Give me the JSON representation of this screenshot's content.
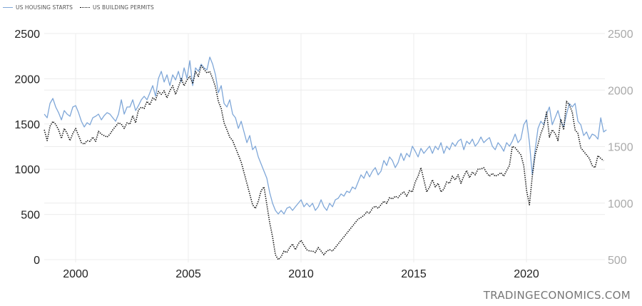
{
  "legend": {
    "items": [
      {
        "label": "US HOUSING STARTS",
        "style": "solid",
        "color": "#7fa7d8"
      },
      {
        "label": "US BUILDING PERMITS",
        "style": "dotted",
        "color": "#111111"
      }
    ]
  },
  "source": {
    "label": "TRADINGECONOMICS.COM"
  },
  "chart_data": {
    "type": "line",
    "title": "",
    "xlabel": "",
    "ylabel": "",
    "x_ticks": [
      2000,
      2005,
      2010,
      2015,
      2020
    ],
    "xlim": [
      1998.6,
      2023.5
    ],
    "left_axis": {
      "ticks": [
        0,
        500,
        1000,
        1500,
        2000,
        2500
      ],
      "ylim": [
        0,
        2500
      ],
      "series": "US HOUSING STARTS"
    },
    "right_axis": {
      "ticks": [
        500,
        1000,
        1500,
        2000,
        2500
      ],
      "ylim": [
        500,
        2500
      ],
      "series": "US BUILDING PERMITS"
    },
    "grid": true,
    "legend_position": "top-left",
    "x_start": 1998.61,
    "x_step": 0.1266,
    "series": [
      {
        "name": "US HOUSING STARTS",
        "axis": "left",
        "color": "#7fa7d8",
        "style": "solid",
        "values": [
          1609,
          1569,
          1727,
          1782,
          1688,
          1625,
          1546,
          1648,
          1609,
          1585,
          1688,
          1703,
          1625,
          1530,
          1467,
          1514,
          1491,
          1569,
          1585,
          1609,
          1546,
          1593,
          1625,
          1609,
          1569,
          1530,
          1609,
          1767,
          1609,
          1688,
          1688,
          1767,
          1648,
          1703,
          1767,
          1806,
          1767,
          1845,
          1924,
          1806,
          2003,
          2082,
          1964,
          2043,
          1924,
          2043,
          1987,
          2082,
          1964,
          2121,
          2003,
          2200,
          1924,
          2121,
          2082,
          2161,
          2121,
          2098,
          2240,
          2161,
          2043,
          1845,
          1924,
          1727,
          1688,
          1767,
          1609,
          1569,
          1451,
          1530,
          1412,
          1293,
          1372,
          1215,
          1254,
          1136,
          1057,
          978,
          899,
          741,
          623,
          544,
          505,
          544,
          505,
          568,
          584,
          544,
          584,
          623,
          662,
          584,
          623,
          584,
          623,
          544,
          584,
          662,
          584,
          544,
          623,
          584,
          662,
          678,
          726,
          702,
          757,
          741,
          804,
          781,
          860,
          938,
          899,
          978,
          915,
          978,
          1017,
          938,
          978,
          1096,
          1041,
          1136,
          1096,
          1017,
          1073,
          1175,
          1096,
          1175,
          1136,
          1254,
          1199,
          1136,
          1230,
          1175,
          1215,
          1254,
          1175,
          1254,
          1215,
          1293,
          1175,
          1254,
          1215,
          1293,
          1254,
          1309,
          1333,
          1215,
          1309,
          1278,
          1333,
          1254,
          1293,
          1356,
          1293,
          1325,
          1349,
          1254,
          1215,
          1293,
          1254,
          1199,
          1293,
          1254,
          1309,
          1388,
          1293,
          1333,
          1491,
          1546,
          1293,
          938,
          1215,
          1451,
          1530,
          1491,
          1609,
          1688,
          1491,
          1569,
          1648,
          1530,
          1467,
          1609,
          1727,
          1688,
          1727,
          1530,
          1491,
          1372,
          1412,
          1333,
          1388,
          1372,
          1333,
          1569,
          1412,
          1435
        ]
      },
      {
        "name": "US BUILDING PERMITS",
        "axis": "right",
        "color": "#111111",
        "style": "dotted",
        "values": [
          1648,
          1553,
          1679,
          1723,
          1697,
          1648,
          1572,
          1660,
          1616,
          1553,
          1616,
          1660,
          1597,
          1534,
          1521,
          1553,
          1546,
          1584,
          1546,
          1635,
          1610,
          1597,
          1584,
          1610,
          1648,
          1679,
          1710,
          1698,
          1660,
          1710,
          1698,
          1773,
          1710,
          1824,
          1849,
          1837,
          1900,
          1868,
          1931,
          1912,
          1988,
          1962,
          1994,
          1931,
          1994,
          2038,
          1962,
          2026,
          2101,
          2038,
          2089,
          2120,
          2057,
          2164,
          2120,
          2215,
          2183,
          2152,
          2164,
          2101,
          2026,
          1900,
          1837,
          1710,
          1648,
          1584,
          1553,
          1490,
          1427,
          1364,
          1269,
          1175,
          1080,
          985,
          953,
          1017,
          1111,
          1143,
          985,
          827,
          701,
          543,
          500,
          525,
          576,
          563,
          607,
          639,
          588,
          639,
          671,
          627,
          588,
          576,
          576,
          563,
          607,
          576,
          543,
          576,
          588,
          576,
          607,
          639,
          671,
          701,
          733,
          765,
          796,
          828,
          859,
          873,
          891,
          922,
          910,
          954,
          973,
          954,
          985,
          1017,
          998,
          1048,
          1036,
          1061,
          1048,
          1080,
          1099,
          1061,
          1111,
          1099,
          1187,
          1238,
          1313,
          1206,
          1099,
          1143,
          1206,
          1143,
          1175,
          1099,
          1124,
          1187,
          1175,
          1238,
          1206,
          1250,
          1175,
          1238,
          1288,
          1225,
          1275,
          1250,
          1301,
          1301,
          1313,
          1269,
          1238,
          1263,
          1238,
          1250,
          1269,
          1238,
          1288,
          1332,
          1502,
          1490,
          1458,
          1427,
          1332,
          1111,
          985,
          1238,
          1427,
          1521,
          1616,
          1679,
          1805,
          1584,
          1648,
          1616,
          1553,
          1742,
          1648,
          1900,
          1868,
          1805,
          1648,
          1616,
          1490,
          1458,
          1427,
          1395,
          1332,
          1313,
          1420,
          1395,
          1376
        ]
      }
    ]
  }
}
